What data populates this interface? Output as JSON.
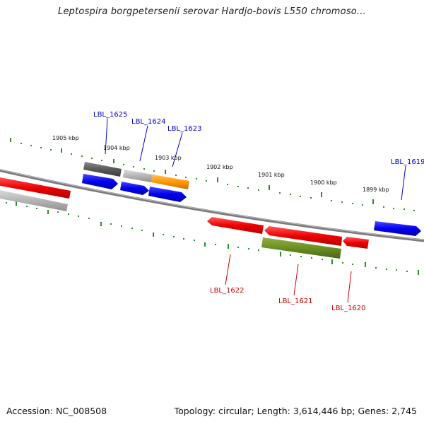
{
  "title": "Leptospira borgpetersenii serovar Hardjo-bovis L550 chromoso...",
  "footer": {
    "accession": "Accession: NC_008508",
    "summary": "Topology: circular; Length: 3,614,446 bp; Genes: 2,745"
  },
  "colors": {
    "backbone": "#808080",
    "ticks": "#2e8b2e",
    "forward_label": "#0000cc",
    "reverse_label": "#cc0000",
    "blue": "#0000ee",
    "red": "#ee0000",
    "orange": "#ff9900",
    "olive": "#6b8e23",
    "gray_dark": "#5a5a5a",
    "gray_light": "#b5b5b5"
  },
  "kbp_labels": [
    "1905 kbp",
    "1904 kbp",
    "1903 kbp",
    "1902 kbp",
    "1901 kbp",
    "1900 kbp",
    "1899 kbp"
  ],
  "gene_labels": {
    "forward": [
      "LBL_1625",
      "LBL_1624",
      "LBL_1623",
      "LBL_1619"
    ],
    "reverse": [
      "LBL_1622",
      "LBL_1621",
      "LBL_1620"
    ]
  },
  "features": [
    {
      "name": "LBL_1625",
      "strand": "forward",
      "color": "gray_dark"
    },
    {
      "name": "LBL_1624",
      "strand": "forward",
      "color": "gray_light"
    },
    {
      "name": "LBL_1623",
      "strand": "forward",
      "color": "orange"
    },
    {
      "name": "LBL_1619",
      "strand": "forward",
      "color": "blue"
    },
    {
      "name": "LBL_1622",
      "strand": "reverse",
      "color": "red"
    },
    {
      "name": "LBL_1621",
      "strand": "reverse",
      "color": "red"
    },
    {
      "name": "LBL_1620",
      "strand": "reverse",
      "color": "red"
    }
  ]
}
